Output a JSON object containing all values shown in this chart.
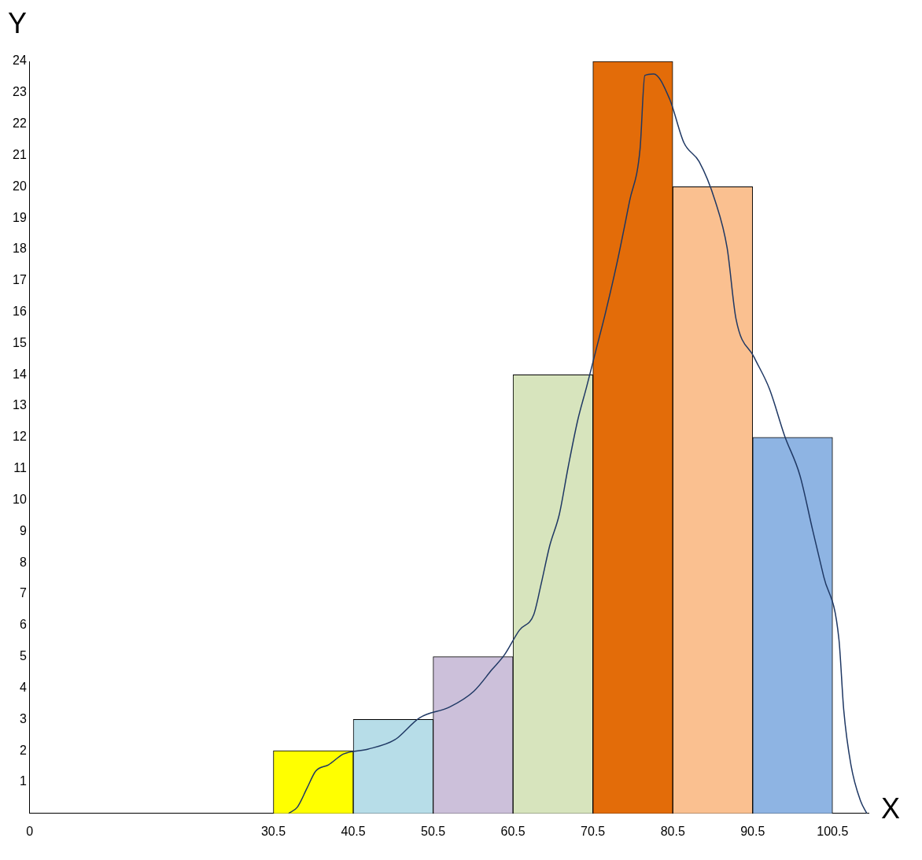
{
  "chart_data": {
    "type": "histogram",
    "xlabel": "X",
    "ylabel": "Y",
    "bins": [
      30.5,
      40.5,
      50.5,
      60.5,
      70.5,
      80.5,
      90.5,
      100.5
    ],
    "values": [
      2,
      3,
      5,
      14,
      24,
      20,
      12
    ],
    "colors": [
      "#ffff00",
      "#b7dde8",
      "#ccc0da",
      "#d7e4bd",
      "#e36c09",
      "#fac090",
      "#8eb4e3"
    ],
    "series": [
      {
        "type": "line",
        "color": "#1f3864",
        "x": [
          32.4,
          33.5,
          34.7,
          35.8,
          37.4,
          39.3,
          42.3,
          45.7,
          48.8,
          52.6,
          55.6,
          57.9,
          59.4,
          61.3,
          63.1,
          64.0,
          65.1,
          66.3,
          67.4,
          68.6,
          69.7,
          70.9,
          72.0,
          73.5,
          75.1,
          76.4,
          77.0,
          78.1,
          80.1,
          81.9,
          83.8,
          85.8,
          87.3,
          88.4,
          90.7,
          92.6,
          94.5,
          96.4,
          98.0,
          99.4,
          101.3,
          101.9,
          102.8,
          104.0,
          104.8
        ],
        "values": [
          0,
          0.2,
          0.8,
          1.35,
          1.55,
          1.9,
          2.05,
          2.35,
          3.05,
          3.4,
          3.9,
          4.6,
          5.05,
          5.85,
          6.35,
          7.3,
          8.55,
          9.55,
          11.05,
          12.55,
          13.6,
          14.8,
          15.9,
          17.55,
          19.55,
          21.2,
          23.55,
          23.6,
          22.8,
          21.4,
          20.8,
          19.55,
          18.05,
          15.8,
          14.55,
          13.55,
          12.05,
          10.8,
          9.05,
          7.55,
          5.55,
          3.3,
          1.55,
          0.4,
          0
        ]
      }
    ],
    "xlim": [
      0,
      105
    ],
    "xticks": [
      0,
      30.5,
      40.5,
      50.5,
      60.5,
      70.5,
      80.5,
      90.5,
      100.5
    ],
    "ylim": [
      0,
      24
    ],
    "yticks": [
      1,
      2,
      3,
      4,
      5,
      6,
      7,
      8,
      9,
      10,
      11,
      12,
      13,
      14,
      15,
      16,
      17,
      18,
      19,
      20,
      21,
      22,
      23,
      24
    ],
    "grid": false,
    "legend": false
  }
}
